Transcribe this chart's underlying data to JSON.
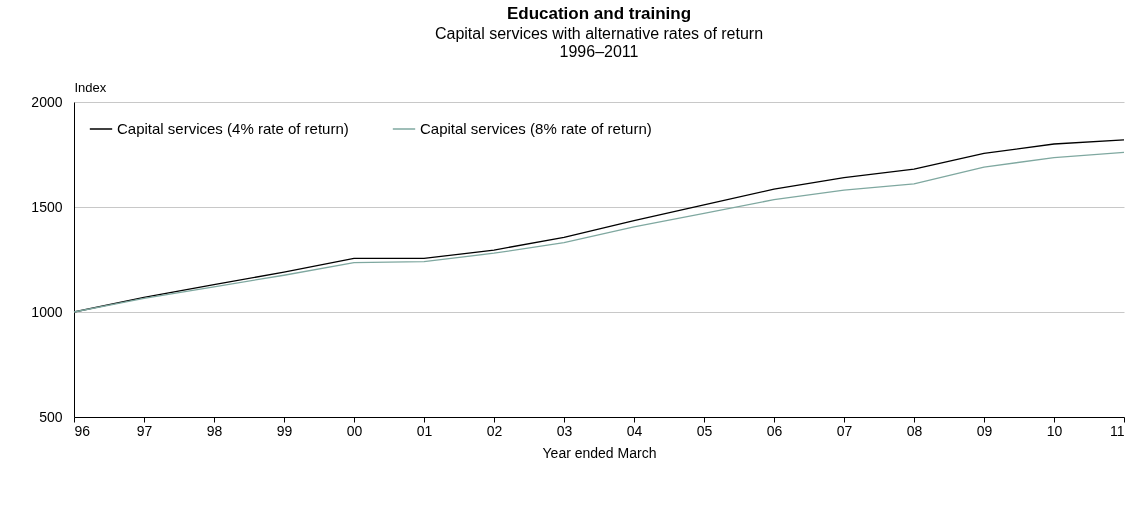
{
  "chart_data": {
    "type": "line",
    "title": "Education and training",
    "subtitle": "Capital services with alternative rates of return\n1996–2011",
    "xlabel": "Year ended March",
    "ylabel": "Index",
    "categories": [
      "96",
      "97",
      "98",
      "99",
      "00",
      "01",
      "02",
      "03",
      "04",
      "05",
      "06",
      "07",
      "08",
      "09",
      "10",
      "11"
    ],
    "series": [
      {
        "name": "Capital services (4% rate of return)",
        "color": "#000000",
        "values": [
          1000,
          1070,
          1130,
          1190,
          1255,
          1255,
          1295,
          1355,
          1435,
          1510,
          1585,
          1640,
          1680,
          1755,
          1800,
          1820
        ]
      },
      {
        "name": "Capital services (8% rate of return)",
        "color": "#7fa8a0",
        "values": [
          1000,
          1065,
          1120,
          1175,
          1235,
          1240,
          1280,
          1330,
          1405,
          1470,
          1535,
          1580,
          1610,
          1690,
          1735,
          1760
        ]
      }
    ],
    "ylim": [
      500,
      2000
    ],
    "yticks": [
      500,
      1000,
      1500,
      2000
    ],
    "grid": "y",
    "legend": "top left",
    "marker": "none",
    "line_style": "solid"
  }
}
